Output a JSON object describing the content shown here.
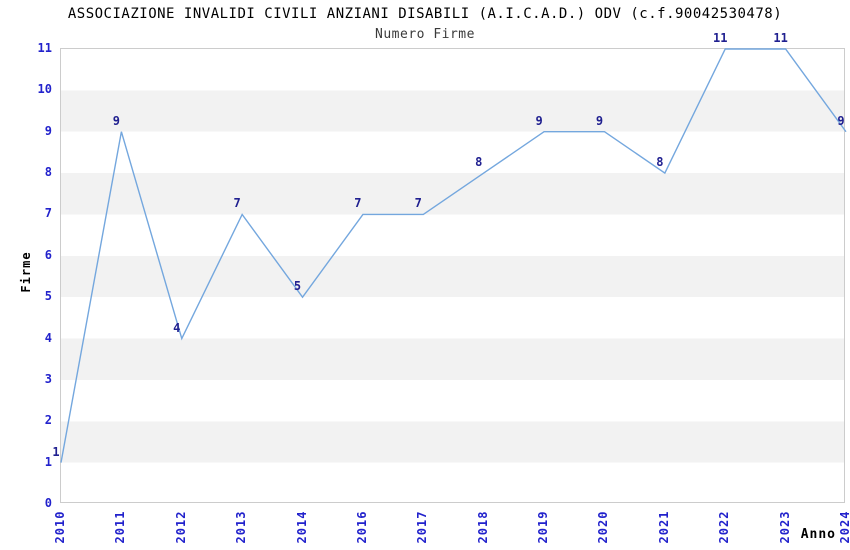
{
  "chart_data": {
    "type": "line",
    "title": "ASSOCIAZIONE INVALIDI CIVILI ANZIANI DISABILI (A.I.C.A.D.) ODV (c.f.90042530478)",
    "subtitle": "Numero Firme",
    "xlabel": "Anno",
    "ylabel": "Firme",
    "categories": [
      "2010",
      "2011",
      "2012",
      "2013",
      "2014",
      "2016",
      "2017",
      "2018",
      "2019",
      "2020",
      "2021",
      "2022",
      "2023",
      "2024"
    ],
    "values": [
      1,
      9,
      4,
      7,
      5,
      7,
      7,
      8,
      9,
      9,
      8,
      11,
      11,
      9
    ],
    "ylim": [
      0,
      11
    ],
    "yticks": [
      0,
      1,
      2,
      3,
      4,
      5,
      6,
      7,
      8,
      9,
      10,
      11
    ],
    "grid": "alternating-horizontal-bands",
    "legend": "none",
    "markers": "none",
    "colors": {
      "line": "#74a7de",
      "tick_label": "#2222cc",
      "data_label": "#202090",
      "band": "#f2f2f2",
      "plot_border": "#cccccc",
      "title": "#000000",
      "subtitle": "#3a3a3a",
      "axis_title": "#000000"
    }
  }
}
